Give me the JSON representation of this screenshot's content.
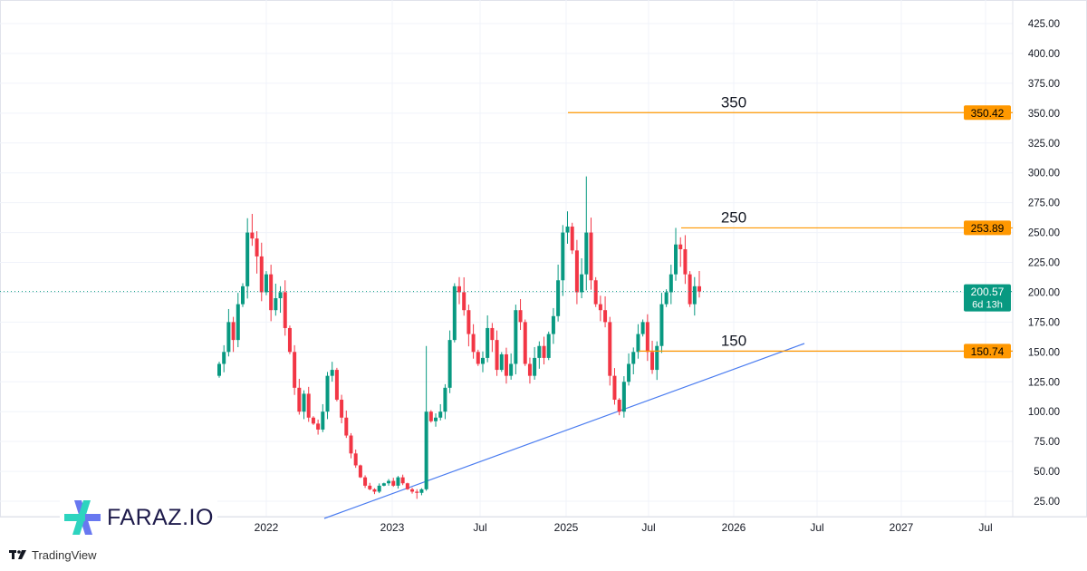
{
  "chart_data": {
    "type": "candlestick",
    "ylim": [
      10,
      440
    ],
    "y_ticks": [
      425,
      400,
      375,
      350,
      325,
      300,
      275,
      250,
      225,
      200,
      175,
      150,
      125,
      100,
      75,
      50,
      25
    ],
    "y_tick_labels": [
      "425.00",
      "400.00",
      "375.00",
      "350.00",
      "325.00",
      "300.00",
      "275.00",
      "250.00",
      "225.00",
      "200.00",
      "175.00",
      "150.00",
      "125.00",
      "100.00",
      "75.00",
      "50.00",
      "25.00"
    ],
    "x_tick_labels": [
      "2022",
      "2023",
      "Jul",
      "2025",
      "Jul",
      "2026",
      "Jul",
      "2027",
      "Jul"
    ],
    "grid": true,
    "closes": [
      140,
      150,
      175,
      160,
      190,
      205,
      250,
      245,
      230,
      200,
      215,
      185,
      195,
      200,
      170,
      150,
      120,
      100,
      115,
      95,
      90,
      85,
      100,
      130,
      135,
      110,
      95,
      80,
      65,
      55,
      45,
      38,
      35,
      33,
      38,
      40,
      42,
      38,
      45,
      40,
      35,
      33,
      32,
      35,
      100,
      92,
      95,
      100,
      120,
      160,
      205,
      200,
      185,
      165,
      150,
      140,
      145,
      170,
      160,
      135,
      148,
      130,
      140,
      185,
      175,
      140,
      130,
      145,
      155,
      145,
      165,
      180,
      210,
      250,
      255,
      235,
      200,
      215,
      250,
      210,
      190,
      185,
      175,
      130,
      110,
      100,
      125,
      140,
      150,
      165,
      175,
      150,
      135,
      155,
      190,
      200,
      215,
      240,
      236,
      215,
      190,
      205,
      200.57
    ],
    "first_open": 130,
    "wick_pct": 5,
    "notable_highs": [
      {
        "index": 6,
        "high": 262
      },
      {
        "index": 44,
        "high": 155
      },
      {
        "index": 78,
        "high": 297
      },
      {
        "index": 97,
        "high": 253.89
      }
    ],
    "notable_lows": [
      {
        "index": 85,
        "low": 97
      },
      {
        "index": 42,
        "low": 27
      }
    ],
    "up_color": "#089981",
    "down_color": "#f23645",
    "levels": [
      {
        "price": 350.42,
        "label": "350",
        "price_label": "350.42",
        "color": "#ff9800"
      },
      {
        "price": 253.89,
        "label": "250",
        "price_label": "253.89",
        "color": "#ff9800"
      },
      {
        "price": 150.74,
        "label": "150",
        "price_label": "150.74",
        "color": "#ff9800"
      }
    ],
    "current_price": {
      "price": 200.57,
      "label": "200.57",
      "countdown": "6d 13h",
      "color": "#089981"
    },
    "trendline": {
      "color": "#4a7cf0",
      "start_price": 18,
      "end_price": 157
    }
  },
  "branding": {
    "logo_text": "FARAZ.IO",
    "platform": "TradingView"
  }
}
